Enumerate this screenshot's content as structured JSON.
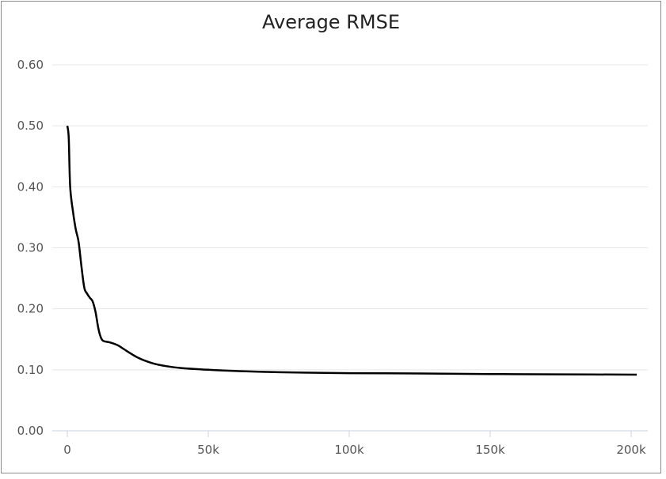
{
  "chart_data": {
    "type": "line",
    "title": "Average RMSE",
    "xlabel": "",
    "ylabel": "",
    "xlim": [
      0,
      204000
    ],
    "ylim": [
      0,
      0.6
    ],
    "y_ticks": [
      "0.00",
      "0.10",
      "0.20",
      "0.30",
      "0.40",
      "0.50",
      "0.60"
    ],
    "x_ticks": [
      "0",
      "50k",
      "100k",
      "150k",
      "200k"
    ],
    "grid": "horizontal",
    "series": [
      {
        "color": "#000000",
        "points": [
          [
            0,
            0.5
          ],
          [
            500,
            0.48
          ],
          [
            1000,
            0.4
          ],
          [
            2000,
            0.36
          ],
          [
            3000,
            0.33
          ],
          [
            4000,
            0.31
          ],
          [
            5000,
            0.27
          ],
          [
            6000,
            0.235
          ],
          [
            7000,
            0.225
          ],
          [
            8000,
            0.218
          ],
          [
            9000,
            0.212
          ],
          [
            10000,
            0.195
          ],
          [
            11000,
            0.168
          ],
          [
            12000,
            0.152
          ],
          [
            13000,
            0.147
          ],
          [
            15000,
            0.145
          ],
          [
            18000,
            0.14
          ],
          [
            20000,
            0.134
          ],
          [
            25000,
            0.12
          ],
          [
            30000,
            0.111
          ],
          [
            35000,
            0.106
          ],
          [
            40000,
            0.103
          ],
          [
            50000,
            0.1
          ],
          [
            60000,
            0.098
          ],
          [
            75000,
            0.096
          ],
          [
            100000,
            0.0945
          ],
          [
            125000,
            0.094
          ],
          [
            150000,
            0.093
          ],
          [
            175000,
            0.0925
          ],
          [
            202000,
            0.092
          ]
        ]
      }
    ]
  }
}
